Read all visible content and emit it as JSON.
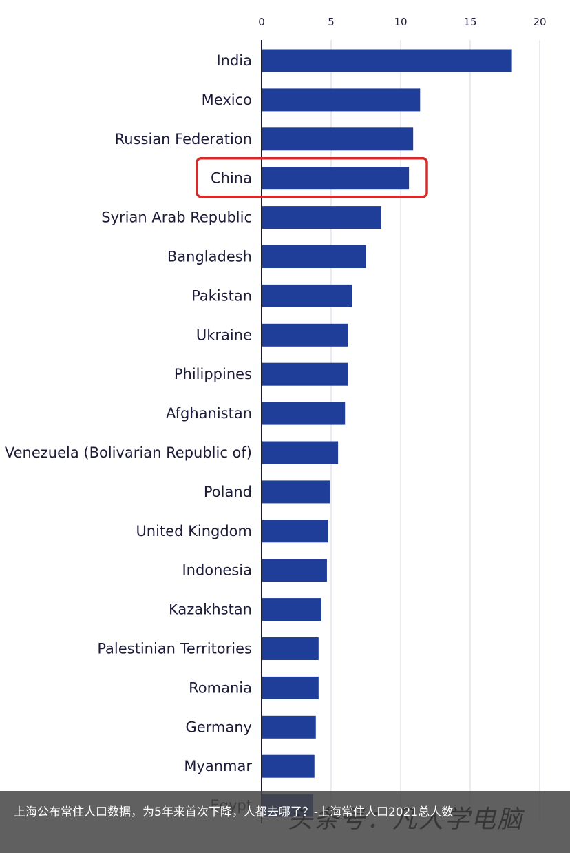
{
  "chart_data": {
    "type": "bar",
    "orientation": "horizontal",
    "categories": [
      "India",
      "Mexico",
      "Russian Federation",
      "China",
      "Syrian Arab Republic",
      "Bangladesh",
      "Pakistan",
      "Ukraine",
      "Philippines",
      "Afghanistan",
      "Venezuela (Bolivarian Republic of)",
      "Poland",
      "United Kingdom",
      "Indonesia",
      "Kazakhstan",
      "Palestinian Territories",
      "Romania",
      "Germany",
      "Myanmar",
      "Egypt"
    ],
    "values": [
      18.0,
      11.4,
      10.9,
      10.6,
      8.6,
      7.5,
      6.5,
      6.2,
      6.2,
      6.0,
      5.5,
      4.9,
      4.8,
      4.7,
      4.3,
      4.1,
      4.1,
      3.9,
      3.8,
      3.7
    ],
    "xlim": [
      0,
      20
    ],
    "xticks": [
      0,
      5,
      10,
      15,
      20
    ],
    "xlabel": "",
    "ylabel": "",
    "grid": "vertical",
    "highlighted_category": "China",
    "colors": {
      "bar": "#1f3e99",
      "grid": "#dcdde6",
      "axis": "#1a1a2e",
      "highlight": "#d42b2b"
    }
  },
  "caption": {
    "text": "上海公布常住人口数据，为5年来首次下降，人都去哪了？-上海常住人口2021总人数",
    "watermark": "头条号：凡人学电脑"
  }
}
